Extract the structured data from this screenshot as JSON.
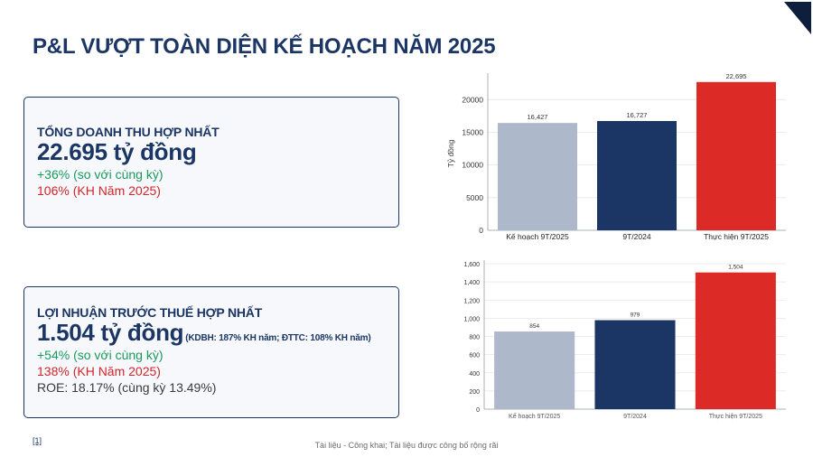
{
  "title": "P&L VƯỢT TOÀN DIỆN KẾ HOẠCH NĂM 2025",
  "card_revenue": {
    "label": "TỔNG DOANH THU HỢP NHẤT",
    "value": "22.695 tỷ đồng",
    "growth": "+36% (so với cùng kỳ)",
    "plan": "106% (KH Năm 2025)"
  },
  "card_profit": {
    "label": "LỢI NHUẬN TRƯỚC THUẾ HỢP NHẤT",
    "value": "1.504 tỷ đồng",
    "note": "(KDBH: 187% KH năm; ĐTTC: 108% KH năm)",
    "growth": "+54% (so với cùng kỳ)",
    "plan": "138% (KH Năm 2025)",
    "roe": "ROE: 18.17% (cùng kỳ 13.49%)"
  },
  "footnote": "[1]",
  "footer": "Tài liệu - Công khai; Tài liệu được công bố rộng rãi",
  "colors": {
    "plan_bar": "#aeb8cb",
    "prior_bar": "#1b3564",
    "actual_bar": "#dc2b26",
    "title": "#1b3564"
  },
  "chart_data": [
    {
      "type": "bar",
      "categories": [
        "Kế hoạch 9T/2025",
        "9T/2024",
        "Thực hiện 9T/2025"
      ],
      "values": [
        16427,
        16727,
        22695
      ],
      "value_labels": [
        "16,427",
        "16,727",
        "22,695"
      ],
      "ylabel": "Tỷ đồng",
      "ylim": [
        0,
        23500
      ],
      "yticks": [
        0,
        5000,
        10000,
        15000,
        20000
      ],
      "ytick_labels": [
        "0",
        "5000",
        "10000",
        "15000",
        "20000"
      ],
      "grid": true
    },
    {
      "type": "bar",
      "categories": [
        "Kế hoạch 9T/2025",
        "9T/2024",
        "Thực hiện 9T/2025"
      ],
      "values": [
        854,
        979,
        1504
      ],
      "value_labels": [
        "854",
        "979",
        "1,504"
      ],
      "ylabel": "",
      "ylim": [
        0,
        1600
      ],
      "yticks": [
        0,
        200,
        400,
        600,
        800,
        1000,
        1200,
        1400,
        1600
      ],
      "ytick_labels": [
        "0",
        "200",
        "400",
        "600",
        "800",
        "1,000",
        "1,200",
        "1,400",
        "1,600"
      ],
      "grid": true
    }
  ]
}
